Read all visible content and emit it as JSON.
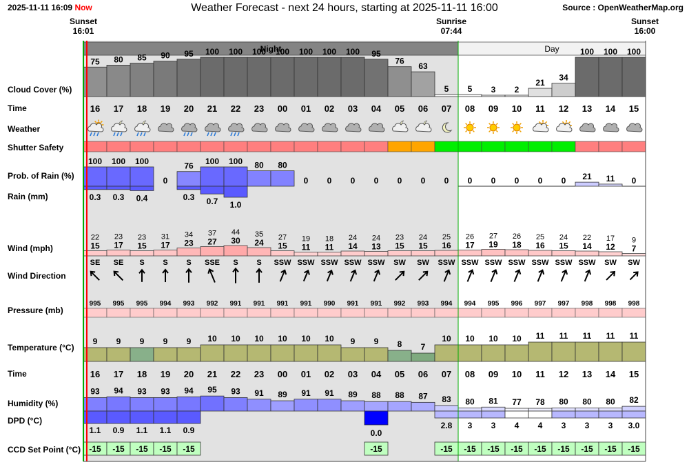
{
  "header": {
    "timestamp": "2025-11-11 16:09",
    "now_label": "Now",
    "title": "Weather Forecast - next 24 hours, starting at 2025-11-11 16:00",
    "source": "Source : OpenWeatherMap.org"
  },
  "sun_events": [
    {
      "label": "Sunset",
      "time": "16:01"
    },
    {
      "label": "Sunrise",
      "time": "07:44"
    },
    {
      "label": "Sunset",
      "time": "16:00"
    }
  ],
  "period_labels": {
    "night": "Night",
    "day": "Day"
  },
  "row_labels": {
    "cloud": "Cloud Cover (%)",
    "time": "Time",
    "weather": "Weather",
    "shutter": "Shutter Safety",
    "rain_prob": "Prob. of Rain (%)",
    "rain_mm": "Rain (mm)",
    "wind": "Wind (mph)",
    "wind_dir": "Wind Direction",
    "pressure": "Pressure (mb)",
    "temperature": "Temperature (°C)",
    "time2": "Time",
    "humidity": "Humidity (%)",
    "dpd": "DPD (°C)",
    "ccd": "CCD Set Point (°C)"
  },
  "chart_data": {
    "type": "table",
    "hours": [
      "16",
      "17",
      "18",
      "19",
      "20",
      "21",
      "22",
      "23",
      "00",
      "01",
      "02",
      "03",
      "04",
      "05",
      "06",
      "07",
      "08",
      "09",
      "10",
      "11",
      "12",
      "13",
      "14",
      "15"
    ],
    "is_day": [
      false,
      false,
      false,
      false,
      false,
      false,
      false,
      false,
      false,
      false,
      false,
      false,
      false,
      false,
      false,
      false,
      true,
      true,
      true,
      true,
      true,
      true,
      true,
      true
    ],
    "cloud_cover": [
      75,
      80,
      85,
      90,
      95,
      100,
      100,
      100,
      100,
      100,
      100,
      100,
      95,
      76,
      63,
      5,
      5,
      3,
      2,
      21,
      34,
      100,
      100,
      100
    ],
    "weather_icons": [
      "rain-day",
      "rain-night",
      "rain-night",
      "cloud",
      "rain",
      "rain",
      "rain",
      "cloud",
      "cloud",
      "cloud",
      "cloud",
      "cloud",
      "cloud",
      "partly-cloudy-night",
      "partly-cloudy-night",
      "clear-night",
      "sun",
      "sun",
      "sun",
      "partly-cloudy-day",
      "partly-cloudy-day",
      "cloud",
      "cloud",
      "cloud"
    ],
    "shutter_safety": [
      "unsafe",
      "unsafe",
      "unsafe",
      "unsafe",
      "unsafe",
      "unsafe",
      "unsafe",
      "unsafe",
      "unsafe",
      "unsafe",
      "unsafe",
      "unsafe",
      "unsafe",
      "marginal",
      "marginal",
      "safe",
      "safe",
      "safe",
      "safe",
      "safe",
      "safe",
      "unsafe",
      "unsafe",
      "unsafe"
    ],
    "shutter_colors": {
      "unsafe": "#ff7f7f",
      "marginal": "#ffa500",
      "safe": "#00ee00"
    },
    "rain_probability": [
      100,
      100,
      100,
      0,
      76,
      100,
      100,
      80,
      80,
      0,
      0,
      0,
      0,
      0,
      0,
      0,
      0,
      0,
      0,
      0,
      0,
      21,
      11,
      0
    ],
    "rain_mm": [
      0.3,
      0.3,
      0.4,
      null,
      0.3,
      0.7,
      1.0,
      null,
      null,
      null,
      null,
      null,
      null,
      null,
      null,
      null,
      null,
      null,
      null,
      null,
      null,
      null,
      null,
      null
    ],
    "wind_gust": [
      22,
      23,
      23,
      31,
      34,
      37,
      44,
      35,
      27,
      19,
      18,
      24,
      24,
      23,
      24,
      25,
      26,
      27,
      26,
      25,
      24,
      22,
      17,
      9
    ],
    "wind_speed": [
      15,
      17,
      15,
      17,
      23,
      27,
      30,
      24,
      15,
      11,
      11,
      14,
      13,
      15,
      15,
      16,
      17,
      19,
      18,
      16,
      15,
      14,
      12,
      7
    ],
    "wind_direction": [
      "SE",
      "SE",
      "S",
      "S",
      "S",
      "SSE",
      "S",
      "S",
      "SSW",
      "SSW",
      "SSW",
      "SSW",
      "SSW",
      "SW",
      "SW",
      "SSW",
      "SSW",
      "SSW",
      "SSW",
      "SSW",
      "SSW",
      "SSW",
      "SW",
      "SW"
    ],
    "pressure": [
      995,
      995,
      995,
      994,
      993,
      992,
      991,
      991,
      991,
      991,
      990,
      991,
      991,
      992,
      993,
      994,
      994,
      995,
      996,
      997,
      997,
      998,
      998,
      998
    ],
    "temperature": [
      9,
      9,
      9,
      9,
      9,
      10,
      10,
      10,
      10,
      10,
      10,
      9,
      9,
      8,
      7,
      10,
      10,
      10,
      10,
      11,
      11,
      11,
      11,
      11
    ],
    "humidity": [
      93,
      94,
      93,
      93,
      94,
      95,
      93,
      91,
      89,
      91,
      91,
      89,
      88,
      88,
      87,
      83,
      80,
      81,
      77,
      78,
      80,
      80,
      80,
      82
    ],
    "dpd": [
      1.1,
      0.9,
      1.1,
      1.1,
      0.9,
      null,
      null,
      null,
      null,
      null,
      null,
      null,
      0.0,
      null,
      null,
      2.8,
      3,
      3,
      4,
      4,
      3,
      3,
      3,
      3.0
    ],
    "ccd_set_point": [
      -15,
      -15,
      -15,
      -15,
      -15,
      null,
      null,
      null,
      null,
      null,
      null,
      null,
      -15,
      null,
      null,
      -15,
      -15,
      -15,
      -15,
      -15,
      -15,
      -15,
      -15,
      -15
    ]
  }
}
